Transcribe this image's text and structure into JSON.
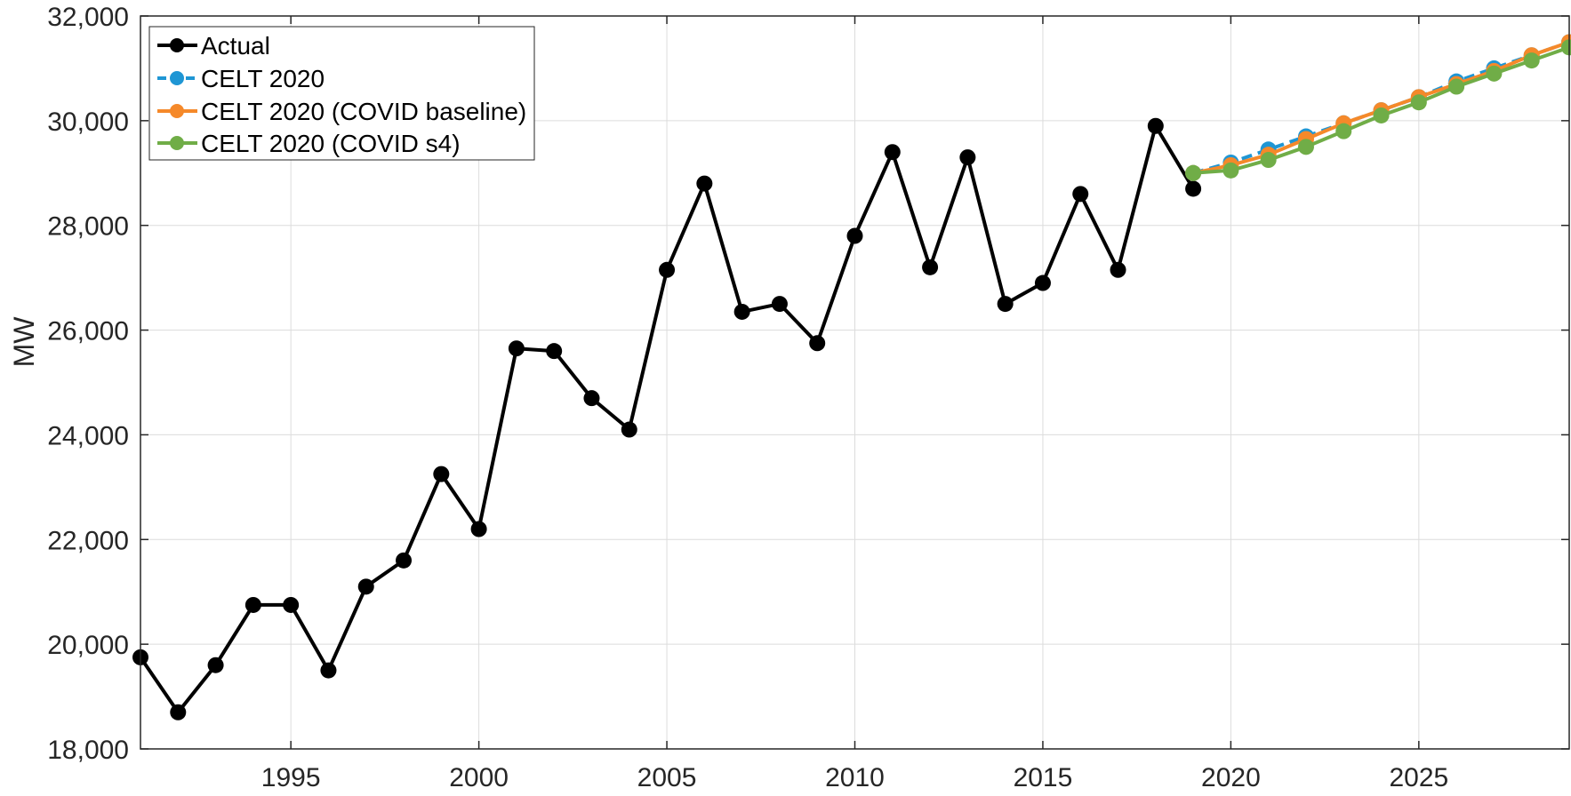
{
  "chart_data": {
    "type": "line",
    "ylabel": "MW",
    "xlabel": "",
    "title": "",
    "xlim": [
      1991,
      2029
    ],
    "ylim": [
      18000,
      32000
    ],
    "x_ticks": [
      1995,
      2000,
      2005,
      2010,
      2015,
      2020,
      2025
    ],
    "x_tick_labels": [
      "1995",
      "2000",
      "2005",
      "2010",
      "2015",
      "2020",
      "2025"
    ],
    "y_ticks": [
      18000,
      20000,
      22000,
      24000,
      26000,
      28000,
      30000,
      32000
    ],
    "y_tick_labels": [
      "18,000",
      "20,000",
      "22,000",
      "24,000",
      "26,000",
      "28,000",
      "30,000",
      "32,000"
    ],
    "grid": true,
    "legend_position": "top-left",
    "series": [
      {
        "name": "Actual",
        "color": "#000000",
        "dash": "solid",
        "x": [
          1991,
          1992,
          1993,
          1994,
          1995,
          1996,
          1997,
          1998,
          1999,
          2000,
          2001,
          2002,
          2003,
          2004,
          2005,
          2006,
          2007,
          2008,
          2009,
          2010,
          2011,
          2012,
          2013,
          2014,
          2015,
          2016,
          2017,
          2018,
          2019
        ],
        "y": [
          19750,
          18700,
          19600,
          20750,
          20750,
          19500,
          21100,
          21600,
          23250,
          22200,
          25650,
          25600,
          24700,
          24100,
          27150,
          28800,
          26350,
          26500,
          25750,
          27800,
          29400,
          27200,
          29300,
          26500,
          26900,
          28600,
          27150,
          29900,
          28700
        ]
      },
      {
        "name": "CELT 2020",
        "color": "#1f96d4",
        "dash": "dashed",
        "x": [
          2019,
          2020,
          2021,
          2022,
          2023,
          2024,
          2025,
          2026,
          2027,
          2028,
          2029
        ],
        "y": [
          29000,
          29200,
          29450,
          29700,
          29950,
          30200,
          30450,
          30750,
          31000,
          31250,
          31500
        ]
      },
      {
        "name": "CELT 2020 (COVID baseline)",
        "color": "#f5892a",
        "dash": "solid",
        "x": [
          2019,
          2020,
          2021,
          2022,
          2023,
          2024,
          2025,
          2026,
          2027,
          2028,
          2029
        ],
        "y": [
          29000,
          29150,
          29350,
          29650,
          29950,
          30200,
          30450,
          30700,
          30950,
          31250,
          31500
        ]
      },
      {
        "name": "CELT 2020 (COVID s4)",
        "color": "#70ad47",
        "dash": "solid",
        "x": [
          2019,
          2020,
          2021,
          2022,
          2023,
          2024,
          2025,
          2026,
          2027,
          2028,
          2029
        ],
        "y": [
          29000,
          29050,
          29250,
          29500,
          29800,
          30100,
          30350,
          30650,
          30900,
          31150,
          31400
        ]
      }
    ]
  }
}
